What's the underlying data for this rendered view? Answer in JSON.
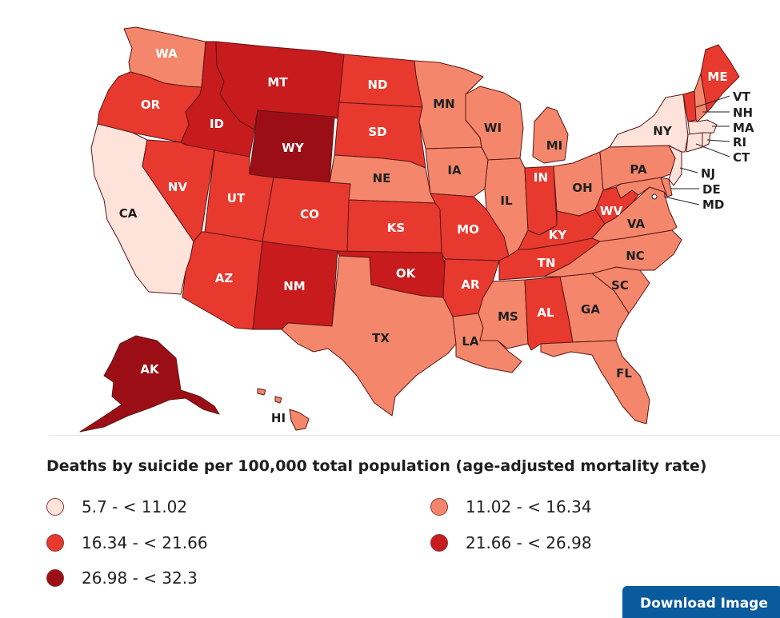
{
  "colors": {
    "c1": "#fde3d9",
    "c2": "#f4876b",
    "c3": "#e8392f",
    "c4": "#c71b1e",
    "c5": "#9c0e15"
  },
  "states": {
    "WA": {
      "label": "WA",
      "bin": "c2"
    },
    "OR": {
      "label": "OR",
      "bin": "c3"
    },
    "CA": {
      "label": "CA",
      "bin": "c1"
    },
    "ID": {
      "label": "ID",
      "bin": "c4"
    },
    "NV": {
      "label": "NV",
      "bin": "c3"
    },
    "MT": {
      "label": "MT",
      "bin": "c4"
    },
    "WY": {
      "label": "WY",
      "bin": "c5"
    },
    "UT": {
      "label": "UT",
      "bin": "c3"
    },
    "AZ": {
      "label": "AZ",
      "bin": "c3"
    },
    "CO": {
      "label": "CO",
      "bin": "c3"
    },
    "NM": {
      "label": "NM",
      "bin": "c4"
    },
    "ND": {
      "label": "ND",
      "bin": "c3"
    },
    "SD": {
      "label": "SD",
      "bin": "c3"
    },
    "NE": {
      "label": "NE",
      "bin": "c2"
    },
    "KS": {
      "label": "KS",
      "bin": "c3"
    },
    "OK": {
      "label": "OK",
      "bin": "c4"
    },
    "TX": {
      "label": "TX",
      "bin": "c2"
    },
    "MN": {
      "label": "MN",
      "bin": "c2"
    },
    "IA": {
      "label": "IA",
      "bin": "c2"
    },
    "MO": {
      "label": "MO",
      "bin": "c3"
    },
    "AR": {
      "label": "AR",
      "bin": "c3"
    },
    "LA": {
      "label": "LA",
      "bin": "c2"
    },
    "WI": {
      "label": "WI",
      "bin": "c2"
    },
    "IL": {
      "label": "IL",
      "bin": "c2"
    },
    "MI": {
      "label": "MI",
      "bin": "c2"
    },
    "IN": {
      "label": "IN",
      "bin": "c3"
    },
    "OH": {
      "label": "OH",
      "bin": "c2"
    },
    "KY": {
      "label": "KY",
      "bin": "c3"
    },
    "TN": {
      "label": "TN",
      "bin": "c3"
    },
    "MS": {
      "label": "MS",
      "bin": "c2"
    },
    "AL": {
      "label": "AL",
      "bin": "c3"
    },
    "GA": {
      "label": "GA",
      "bin": "c2"
    },
    "FL": {
      "label": "FL",
      "bin": "c2"
    },
    "SC": {
      "label": "SC",
      "bin": "c2"
    },
    "NC": {
      "label": "NC",
      "bin": "c2"
    },
    "VA": {
      "label": "VA",
      "bin": "c2"
    },
    "WV": {
      "label": "WV",
      "bin": "c3"
    },
    "PA": {
      "label": "PA",
      "bin": "c2"
    },
    "NY": {
      "label": "NY",
      "bin": "c1"
    },
    "ME": {
      "label": "ME",
      "bin": "c3"
    },
    "VT": {
      "label": "VT",
      "bin": "c3"
    },
    "NH": {
      "label": "NH",
      "bin": "c2"
    },
    "MA": {
      "label": "MA",
      "bin": "c1"
    },
    "RI": {
      "label": "RI",
      "bin": "c1"
    },
    "CT": {
      "label": "CT",
      "bin": "c1"
    },
    "NJ": {
      "label": "NJ",
      "bin": "c1"
    },
    "DE": {
      "label": "DE",
      "bin": "c2"
    },
    "MD": {
      "label": "MD",
      "bin": "c2"
    },
    "AK": {
      "label": "AK",
      "bin": "c5"
    },
    "HI": {
      "label": "HI",
      "bin": "c2"
    }
  },
  "legend": {
    "title": "Deaths by suicide per 100,000 total population (age-adjusted mortality rate)",
    "items": [
      {
        "label": "5.7 - < 11.02",
        "color": "#fde3d9"
      },
      {
        "label": "11.02 - < 16.34",
        "color": "#f4876b"
      },
      {
        "label": "16.34 - < 21.66",
        "color": "#e8392f"
      },
      {
        "label": "21.66 - < 26.98",
        "color": "#c71b1e"
      },
      {
        "label": "26.98 - < 32.3",
        "color": "#9c0e15"
      }
    ]
  },
  "download": {
    "label": "Download Image"
  }
}
